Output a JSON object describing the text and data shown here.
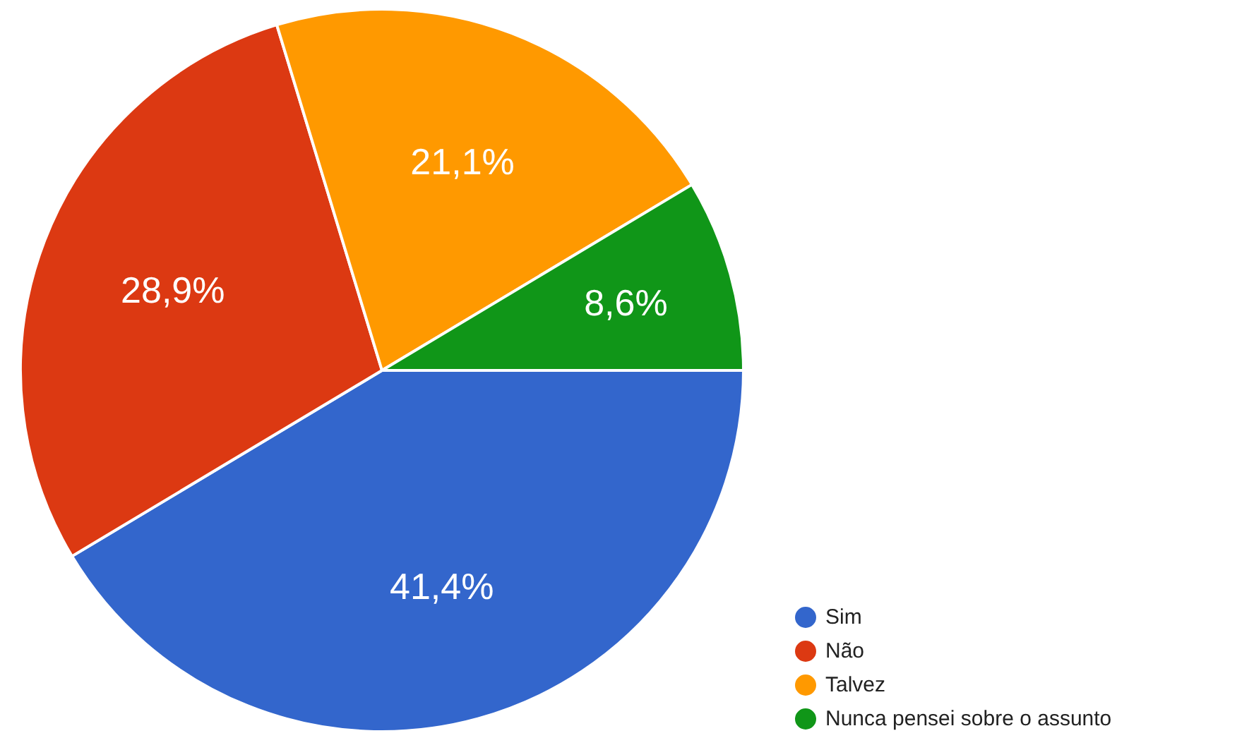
{
  "chart_data": {
    "type": "pie",
    "categories": [
      "Sim",
      "Não",
      "Talvez",
      "Nunca pensei sobre o assunto"
    ],
    "values": [
      41.4,
      28.9,
      21.1,
      8.6
    ],
    "colors": [
      "#3366cc",
      "#dc3912",
      "#ff9900",
      "#109618"
    ],
    "value_labels": [
      "41,4%",
      "28,9%",
      "21,1%",
      "8,6%"
    ],
    "legend": "bottom right"
  }
}
